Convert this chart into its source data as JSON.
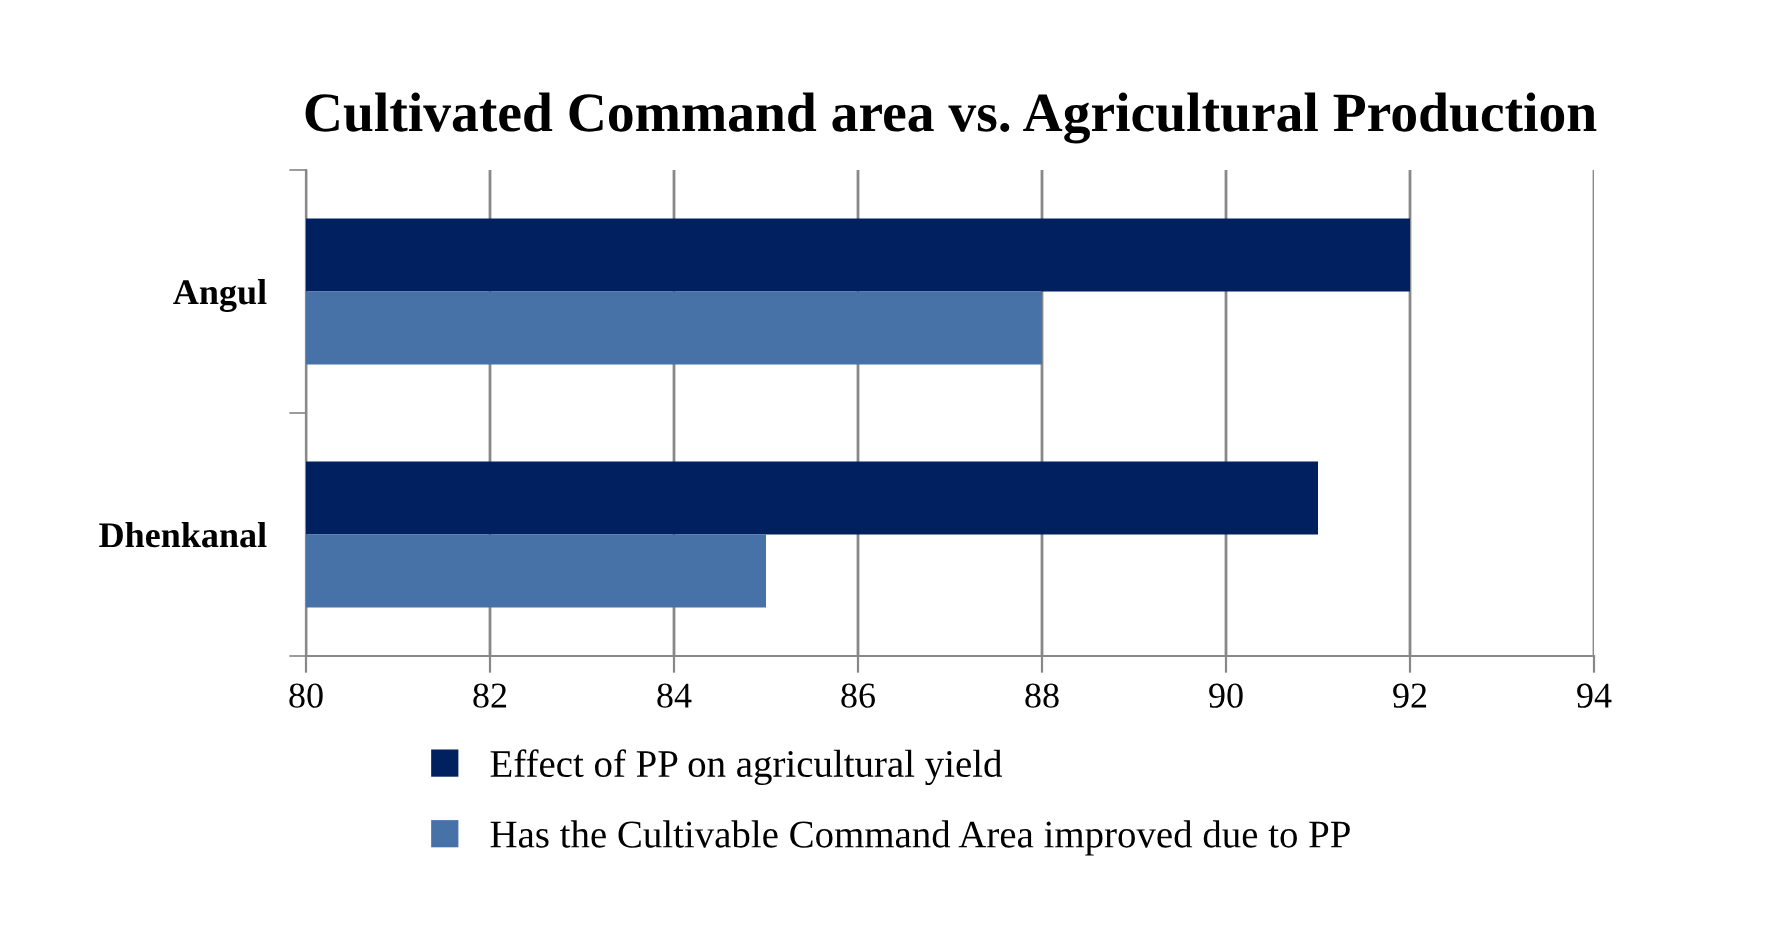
{
  "chart_data": {
    "type": "bar",
    "orientation": "horizontal",
    "title": "Cultivated Command area vs. Agricultural Production",
    "categories": [
      "Angul",
      "Dhenkanal"
    ],
    "series": [
      {
        "name": "Effect of PP on agricultural yield",
        "color": "#002060",
        "values": [
          92,
          91
        ]
      },
      {
        "name": "Has the Cultivable Command Area improved due to PP",
        "color": "#4672a8",
        "values": [
          88,
          85
        ]
      }
    ],
    "xlim": [
      80,
      94
    ],
    "xticks": [
      80,
      82,
      84,
      86,
      88,
      90,
      92,
      94
    ],
    "grid": "x",
    "legend": "bottom"
  }
}
